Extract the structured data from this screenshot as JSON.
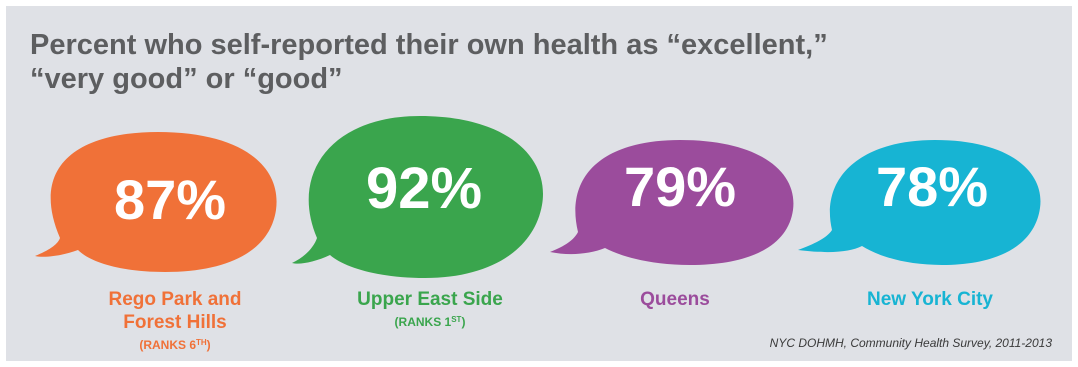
{
  "title_lines": [
    "Percent who self-reported their own health as “excellent,”",
    "“very good” or “good”"
  ],
  "colors": {
    "background": "#dfe1e6",
    "title": "#5d5e60",
    "orange": "#f07138",
    "green": "#3aa54d",
    "purple": "#9b4c9c",
    "blue": "#17b4d3"
  },
  "chart_data": {
    "type": "bar",
    "title": "Percent who self-reported their own health as “excellent,” “very good” or “good”",
    "categories": [
      "Rego Park and Forest Hills",
      "Upper East Side",
      "Queens",
      "New York City"
    ],
    "values": [
      87,
      92,
      79,
      78
    ],
    "value_labels": [
      "87%",
      "92%",
      "79%",
      "78%"
    ],
    "unit": "%"
  },
  "labels": [
    {
      "name_lines": [
        "Rego Park and",
        "Forest Hills"
      ],
      "rank_prefix": "(RANKS 6",
      "rank_sup": "TH",
      "rank_suffix": ")"
    },
    {
      "name_lines": [
        "Upper East Side"
      ],
      "rank_prefix": "(RANKS 1",
      "rank_sup": "ST",
      "rank_suffix": ")"
    },
    {
      "name_lines": [
        "Queens"
      ]
    },
    {
      "name_lines": [
        "New York City"
      ]
    }
  ],
  "source": "NYC DOHMH, Community Health Survey, 2011-2013"
}
